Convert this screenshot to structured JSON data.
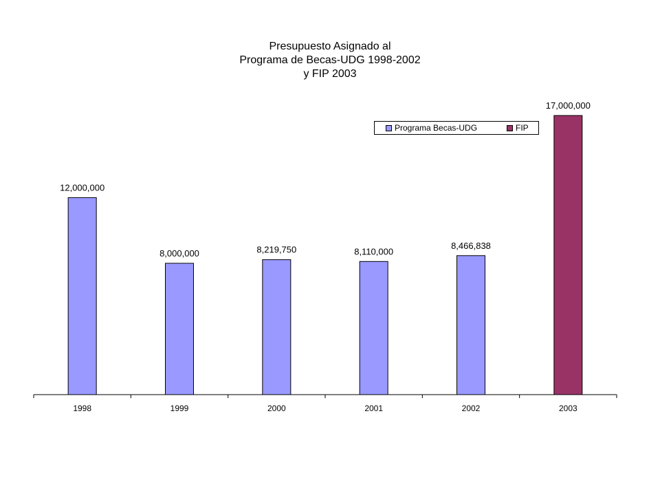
{
  "chart_data": {
    "type": "bar",
    "title_lines": [
      "Presupuesto Asignado al",
      "Programa de Becas-UDG 1998-2002",
      "y FIP 2003"
    ],
    "categories": [
      "1998",
      "1999",
      "2000",
      "2001",
      "2002",
      "2003"
    ],
    "series": [
      {
        "name": "Programa Becas-UDG",
        "color": "#9999ff",
        "values": [
          12000000,
          8000000,
          8219750,
          8110000,
          8466838,
          null
        ],
        "labels": [
          "12,000,000",
          "8,000,000",
          "8,219,750",
          "8,110,000",
          "8,466,838",
          ""
        ]
      },
      {
        "name": "FIP",
        "color": "#993366",
        "values": [
          null,
          null,
          null,
          null,
          null,
          17000000
        ],
        "labels": [
          "",
          "",
          "",
          "",
          "",
          "17,000,000"
        ]
      }
    ],
    "ylim": [
      0,
      17000000
    ],
    "grid": false,
    "legend_position": "top-right"
  }
}
